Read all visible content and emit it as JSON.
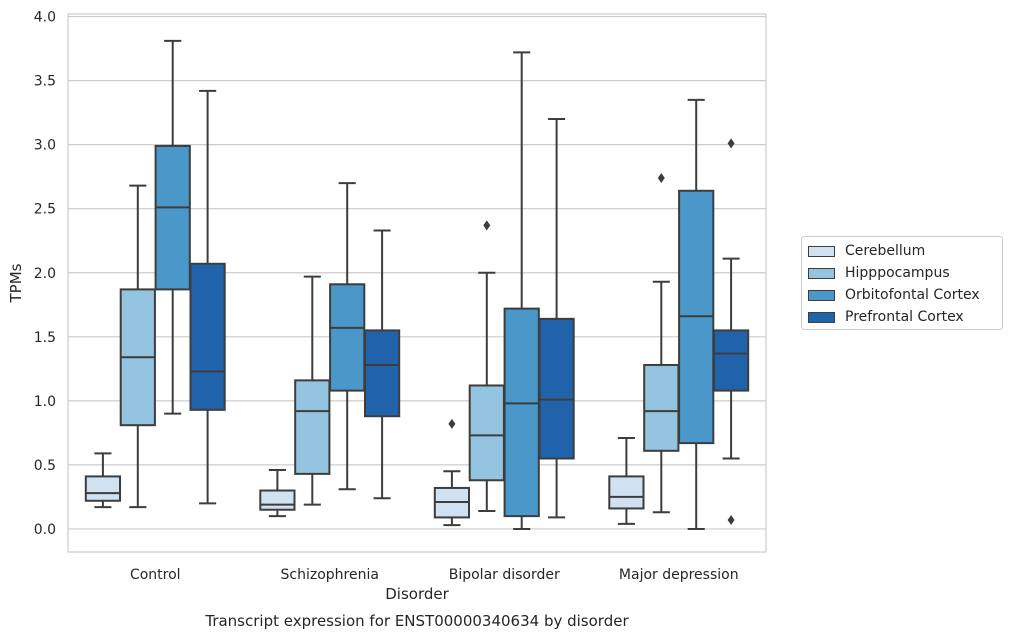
{
  "chart_data": {
    "type": "box",
    "title": "Transcript expression for ENST00000340634 by disorder",
    "xlabel": "Disorder",
    "ylabel": "TPMs",
    "ylim": [
      -0.18,
      4.02
    ],
    "yticks": [
      "0.0",
      "0.5",
      "1.0",
      "1.5",
      "2.0",
      "2.5",
      "3.0",
      "3.5",
      "4.0"
    ],
    "categories": [
      "Control",
      "Schizophrenia",
      "Bipolar disorder",
      "Major depression"
    ],
    "grid": true,
    "legend_position": "right",
    "series": [
      {
        "name": "Cerebellum",
        "color": "#d0e1f2",
        "boxes": [
          {
            "whislo": 0.17,
            "q1": 0.22,
            "med": 0.28,
            "q3": 0.41,
            "whishi": 0.59,
            "fliers": []
          },
          {
            "whislo": 0.1,
            "q1": 0.15,
            "med": 0.19,
            "q3": 0.3,
            "whishi": 0.46,
            "fliers": []
          },
          {
            "whislo": 0.03,
            "q1": 0.09,
            "med": 0.21,
            "q3": 0.32,
            "whishi": 0.45,
            "fliers": [
              0.82
            ]
          },
          {
            "whislo": 0.04,
            "q1": 0.16,
            "med": 0.25,
            "q3": 0.41,
            "whishi": 0.71,
            "fliers": []
          }
        ]
      },
      {
        "name": "Hipppocampus",
        "color": "#94c4df",
        "boxes": [
          {
            "whislo": 0.17,
            "q1": 0.81,
            "med": 1.34,
            "q3": 1.87,
            "whishi": 2.68,
            "fliers": []
          },
          {
            "whislo": 0.19,
            "q1": 0.43,
            "med": 0.92,
            "q3": 1.16,
            "whishi": 1.97,
            "fliers": []
          },
          {
            "whislo": 0.14,
            "q1": 0.38,
            "med": 0.73,
            "q3": 1.12,
            "whishi": 2.0,
            "fliers": [
              2.37
            ]
          },
          {
            "whislo": 0.13,
            "q1": 0.61,
            "med": 0.92,
            "q3": 1.28,
            "whishi": 1.93,
            "fliers": [
              2.74
            ]
          }
        ]
      },
      {
        "name": "Orbitofontal Cortex",
        "color": "#4a98c9",
        "boxes": [
          {
            "whislo": 0.9,
            "q1": 1.87,
            "med": 2.51,
            "q3": 2.99,
            "whishi": 3.81,
            "fliers": []
          },
          {
            "whislo": 0.31,
            "q1": 1.08,
            "med": 1.57,
            "q3": 1.91,
            "whishi": 2.7,
            "fliers": []
          },
          {
            "whislo": 0.0,
            "q1": 0.1,
            "med": 0.98,
            "q3": 1.72,
            "whishi": 3.72,
            "fliers": []
          },
          {
            "whislo": 0.0,
            "q1": 0.67,
            "med": 1.66,
            "q3": 2.64,
            "whishi": 3.35,
            "fliers": []
          }
        ]
      },
      {
        "name": "Prefrontal Cortex",
        "color": "#2163aa",
        "boxes": [
          {
            "whislo": 0.2,
            "q1": 0.93,
            "med": 1.23,
            "q3": 2.07,
            "whishi": 3.42,
            "fliers": []
          },
          {
            "whislo": 0.24,
            "q1": 0.88,
            "med": 1.28,
            "q3": 1.55,
            "whishi": 2.33,
            "fliers": []
          },
          {
            "whislo": 0.09,
            "q1": 0.55,
            "med": 1.01,
            "q3": 1.64,
            "whishi": 3.2,
            "fliers": []
          },
          {
            "whislo": 0.55,
            "q1": 1.08,
            "med": 1.37,
            "q3": 1.55,
            "whishi": 2.11,
            "fliers": [
              3.01,
              0.07
            ]
          }
        ]
      }
    ]
  }
}
